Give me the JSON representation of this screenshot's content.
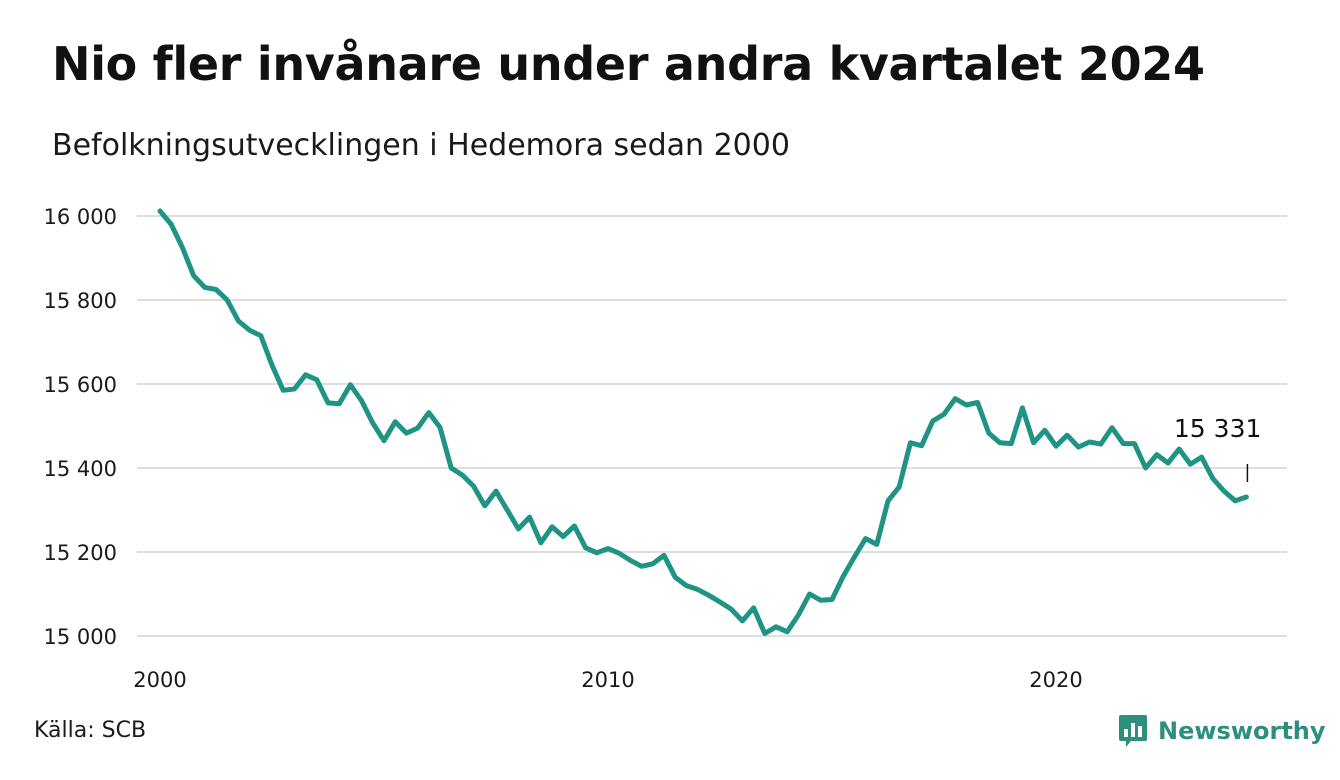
{
  "title": "Nio fler invånare under andra kvartalet 2024",
  "subtitle": "Befolkningsutvecklingen i Hedemora sedan 2000",
  "source": "Källa: SCB",
  "brand": {
    "name": "Newsworthy",
    "icon": "newsworthy-logo-icon",
    "color": "#2f8f7f"
  },
  "colors": {
    "line": "#1f9484",
    "grid": "#dedede",
    "text": "#111111"
  },
  "chart_data": {
    "type": "line",
    "title": "Nio fler invånare under andra kvartalet 2024",
    "subtitle": "Befolkningsutvecklingen i Hedemora sedan 2000",
    "xlabel": "",
    "ylabel": "",
    "xlim": [
      2000,
      2024.5
    ],
    "ylim": [
      15000,
      16000
    ],
    "xticks": [
      {
        "value": 2000,
        "label": "2000"
      },
      {
        "value": 2010,
        "label": "2010"
      },
      {
        "value": 2020,
        "label": "2020"
      }
    ],
    "yticks": [
      {
        "value": 15000,
        "label": "15 000"
      },
      {
        "value": 15200,
        "label": "15 200"
      },
      {
        "value": 15400,
        "label": "15 400"
      },
      {
        "value": 15600,
        "label": "15 600"
      },
      {
        "value": 15800,
        "label": "15 800"
      },
      {
        "value": 16000,
        "label": "16 000"
      }
    ],
    "grid": true,
    "legend": "none",
    "annotation": {
      "x": 2024.25,
      "y": 15331,
      "label": "15 331"
    },
    "series": [
      {
        "x": [
          2000.0,
          2000.25,
          2000.5,
          2000.75,
          2001.0,
          2001.25,
          2001.5,
          2001.75,
          2002.0,
          2002.25,
          2002.5,
          2002.75,
          2003.0,
          2003.25,
          2003.5,
          2003.75,
          2004.0,
          2004.25,
          2004.5,
          2004.75,
          2005.0,
          2005.25,
          2005.5,
          2005.75,
          2006.0,
          2006.25,
          2006.5,
          2006.75,
          2007.0,
          2007.25,
          2007.5,
          2007.75,
          2008.0,
          2008.25,
          2008.5,
          2008.75,
          2009.0,
          2009.25,
          2009.5,
          2009.75,
          2010.0,
          2010.25,
          2010.5,
          2010.75,
          2011.0,
          2011.25,
          2011.5,
          2011.75,
          2012.0,
          2012.25,
          2012.5,
          2012.75,
          2013.0,
          2013.25,
          2013.5,
          2013.75,
          2014.0,
          2014.25,
          2014.5,
          2014.75,
          2015.0,
          2015.25,
          2015.5,
          2015.75,
          2016.0,
          2016.25,
          2016.5,
          2016.75,
          2017.0,
          2017.25,
          2017.5,
          2017.75,
          2018.0,
          2018.25,
          2018.5,
          2018.75,
          2019.0,
          2019.25,
          2019.5,
          2019.75,
          2020.0,
          2020.25,
          2020.5,
          2020.75,
          2021.0,
          2021.25,
          2021.5,
          2021.75,
          2022.0,
          2022.25,
          2022.5,
          2022.75,
          2023.0,
          2023.25,
          2023.5,
          2023.75,
          2024.0,
          2024.25
        ],
        "values": [
          16012,
          15980,
          15925,
          15858,
          15830,
          15825,
          15800,
          15750,
          15728,
          15715,
          15645,
          15585,
          15588,
          15622,
          15610,
          15555,
          15553,
          15598,
          15560,
          15507,
          15465,
          15510,
          15483,
          15495,
          15532,
          15497,
          15400,
          15383,
          15357,
          15310,
          15345,
          15300,
          15255,
          15283,
          15222,
          15260,
          15237,
          15262,
          15210,
          15198,
          15208,
          15197,
          15180,
          15166,
          15172,
          15192,
          15140,
          15120,
          15111,
          15097,
          15081,
          15064,
          15036,
          15067,
          15006,
          15022,
          15010,
          15050,
          15100,
          15085,
          15087,
          15142,
          15188,
          15232,
          15218,
          15322,
          15355,
          15460,
          15453,
          15512,
          15528,
          15565,
          15550,
          15556,
          15483,
          15460,
          15458,
          15543,
          15460,
          15490,
          15452,
          15478,
          15450,
          15462,
          15457,
          15496,
          15458,
          15458,
          15400,
          15432,
          15412,
          15445,
          15409,
          15426,
          15375,
          15345,
          15322,
          15331
        ]
      }
    ]
  }
}
